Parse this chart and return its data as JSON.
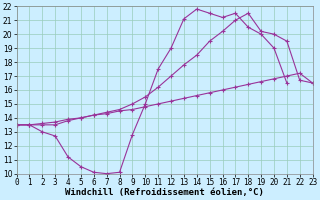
{
  "background_color": "#cceeff",
  "grid_color": "#99ccbb",
  "line_color": "#993399",
  "xlim": [
    0,
    23
  ],
  "ylim": [
    10,
    22
  ],
  "xlabel": "Windchill (Refroidissement éolien,°C)",
  "xlabel_fontsize": 6.5,
  "xtick_labels": [
    "0",
    "1",
    "2",
    "3",
    "4",
    "5",
    "6",
    "7",
    "8",
    "9",
    "10",
    "11",
    "12",
    "13",
    "14",
    "15",
    "16",
    "17",
    "18",
    "19",
    "20",
    "21",
    "22",
    "23"
  ],
  "xticks": [
    0,
    1,
    2,
    3,
    4,
    5,
    6,
    7,
    8,
    9,
    10,
    11,
    12,
    13,
    14,
    15,
    16,
    17,
    18,
    19,
    20,
    21,
    22,
    23
  ],
  "yticks": [
    10,
    11,
    12,
    13,
    14,
    15,
    16,
    17,
    18,
    19,
    20,
    21,
    22
  ],
  "tick_fontsize": 5.5,
  "series": [
    {
      "x": [
        0,
        1,
        2,
        3,
        4,
        5,
        6,
        7,
        8,
        9,
        10,
        11,
        12,
        13,
        14,
        15,
        16,
        17,
        18,
        19,
        20,
        21
      ],
      "y": [
        13.5,
        13.5,
        13.0,
        12.7,
        11.2,
        10.5,
        10.1,
        10.0,
        10.1,
        12.8,
        15.0,
        17.5,
        19.0,
        21.1,
        21.8,
        21.5,
        21.2,
        21.5,
        20.5,
        20.0,
        19.0,
        16.5
      ]
    },
    {
      "x": [
        0,
        1,
        2,
        3,
        4,
        5,
        6,
        7,
        8,
        9,
        10,
        11,
        12,
        13,
        14,
        15,
        16,
        17,
        18,
        19,
        20,
        21,
        22,
        23
      ],
      "y": [
        13.5,
        13.5,
        13.6,
        13.7,
        13.9,
        14.0,
        14.2,
        14.3,
        14.5,
        14.6,
        14.8,
        15.0,
        15.2,
        15.4,
        15.6,
        15.8,
        16.0,
        16.2,
        16.4,
        16.6,
        16.8,
        17.0,
        17.2,
        16.5
      ]
    },
    {
      "x": [
        0,
        1,
        2,
        3,
        4,
        5,
        6,
        7,
        8,
        9,
        10,
        11,
        12,
        13,
        14,
        15,
        16,
        17,
        18,
        19,
        20,
        21,
        22,
        23
      ],
      "y": [
        13.5,
        13.5,
        13.5,
        13.5,
        13.8,
        14.0,
        14.2,
        14.4,
        14.6,
        15.0,
        15.5,
        16.2,
        17.0,
        17.8,
        18.5,
        19.5,
        20.2,
        21.0,
        21.5,
        20.2,
        20.0,
        19.5,
        16.7,
        16.5
      ]
    }
  ]
}
